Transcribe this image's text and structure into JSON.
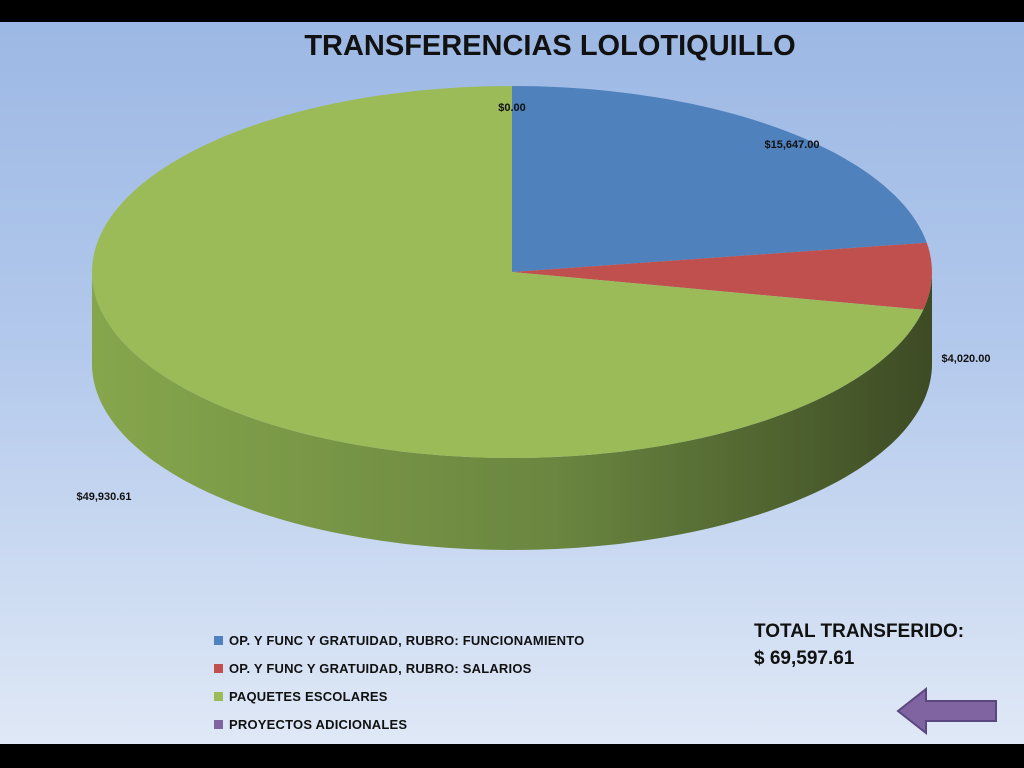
{
  "chart_data": {
    "type": "pie",
    "title": "TRANSFERENCIAS LOLOTIQUILLO",
    "slices": [
      {
        "name": "OP. Y FUNC Y GRATUIDAD,  RUBRO: FUNCIONAMIENTO",
        "value": 15647.0,
        "label": "$15,647.00",
        "color": "#4f81bd"
      },
      {
        "name": "OP. Y FUNC Y GRATUIDAD,  RUBRO: SALARIOS",
        "value": 4020.0,
        "label": "$4,020.00",
        "color": "#c0504d"
      },
      {
        "name": "PAQUETES ESCOLARES",
        "value": 49930.61,
        "label": "$49,930.61",
        "color": "#9bbb59"
      },
      {
        "name": "PROYECTOS  ADICIONALES",
        "value": 0.0,
        "label": "$0.00",
        "color": "#8064a2"
      }
    ],
    "legend_position": "bottom"
  },
  "total": {
    "label": "TOTAL TRANSFERIDO:",
    "value": "$ 69,597.61"
  },
  "back_button": {
    "icon": "arrow-left-icon",
    "color": "#8064a2"
  }
}
